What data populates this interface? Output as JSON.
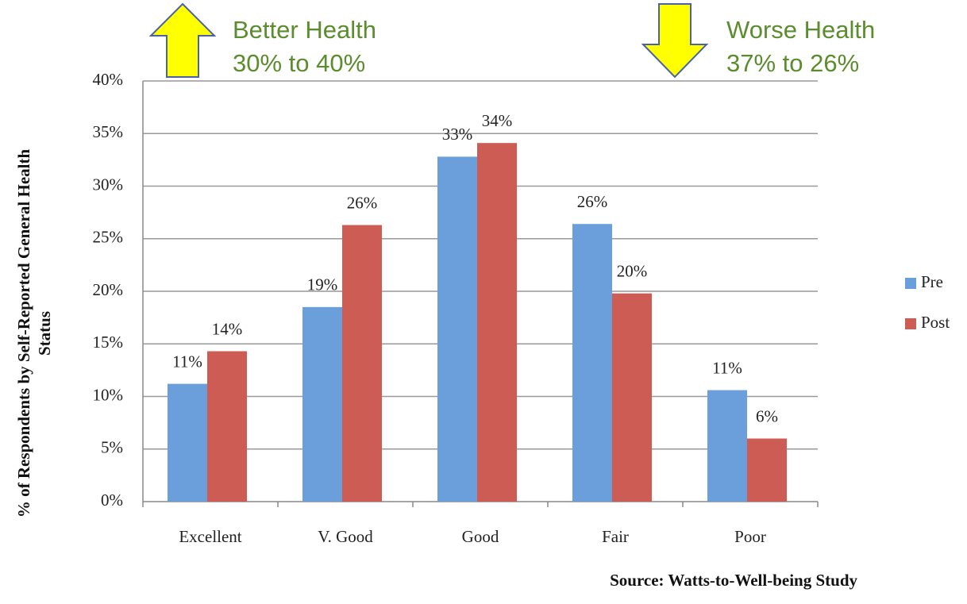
{
  "chart_data": {
    "type": "bar",
    "categories": [
      "Excellent",
      "V. Good",
      "Good",
      "Fair",
      "Poor"
    ],
    "series": [
      {
        "name": "Pre",
        "color": "#6a9fdc",
        "values": [
          11.2,
          18.5,
          32.8,
          26.4,
          10.6
        ],
        "value_labels": [
          "11%",
          "19%",
          "33%",
          "26%",
          "11%"
        ]
      },
      {
        "name": "Post",
        "color": "#cd5c55",
        "values": [
          14.3,
          26.3,
          34.1,
          19.8,
          6.0
        ],
        "value_labels": [
          "14%",
          "26%",
          "34%",
          "20%",
          "6%"
        ]
      }
    ],
    "ylim": [
      0,
      40
    ],
    "yticks": [
      {
        "value": 0,
        "label": "0%"
      },
      {
        "value": 5,
        "label": "5%"
      },
      {
        "value": 10,
        "label": "10%"
      },
      {
        "value": 15,
        "label": "15%"
      },
      {
        "value": 20,
        "label": "20%"
      },
      {
        "value": 25,
        "label": "25%"
      },
      {
        "value": 30,
        "label": "30%"
      },
      {
        "value": 35,
        "label": "35%"
      },
      {
        "value": 40,
        "label": "40%"
      }
    ],
    "grid": true,
    "y_label": [
      "% of Respondents by Self-Reported General Health",
      "Status"
    ],
    "annotations": [
      [
        "Better Health",
        "30% to 40%"
      ],
      [
        "Worse Health",
        "37% to 26%"
      ]
    ],
    "source": "Source: Watts-to-Well-being Study",
    "legend": "right"
  }
}
